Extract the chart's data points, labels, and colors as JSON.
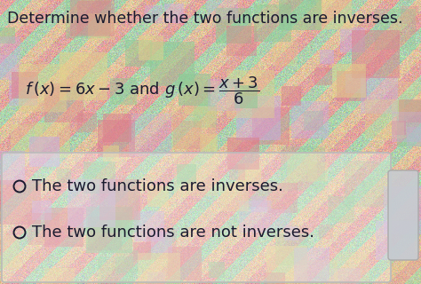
{
  "title": "Determine whether the two functions are inverses.",
  "option1": "The two functions are inverses.",
  "option2": "The two functions are not inverses.",
  "text_color": "#1a1a2e",
  "title_fontsize": 12.5,
  "eq_fontsize": 13,
  "option_fontsize": 13,
  "fig_width": 4.74,
  "fig_height": 3.2,
  "dpi": 100
}
